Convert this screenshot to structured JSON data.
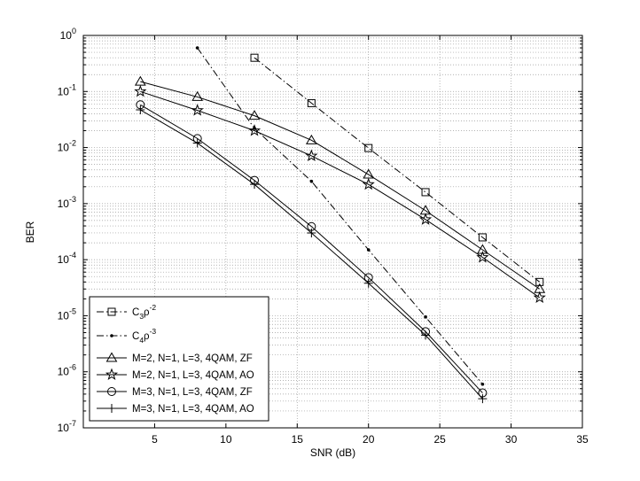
{
  "chart_data": {
    "type": "line",
    "title": "",
    "xlabel": "SNR (dB)",
    "ylabel": "BER",
    "xlim": [
      0,
      35
    ],
    "ylim": [
      1e-07,
      1
    ],
    "yscale": "log",
    "grid": true,
    "legend_position": "bottom-left",
    "x_ticks": [
      5,
      10,
      15,
      20,
      25,
      30,
      35
    ],
    "y_ticks": [
      {
        "value": 1,
        "base": "10",
        "exp": "0"
      },
      {
        "value": 0.1,
        "base": "10",
        "exp": "-1"
      },
      {
        "value": 0.01,
        "base": "10",
        "exp": "-2"
      },
      {
        "value": 0.001,
        "base": "10",
        "exp": "-3"
      },
      {
        "value": 0.0001,
        "base": "10",
        "exp": "-4"
      },
      {
        "value": 1e-05,
        "base": "10",
        "exp": "-5"
      },
      {
        "value": 1e-06,
        "base": "10",
        "exp": "-6"
      },
      {
        "value": 1e-07,
        "base": "10",
        "exp": "-7"
      }
    ],
    "series": [
      {
        "name": "C3ρ-2",
        "legend_main": "C",
        "legend_sub": "3",
        "legend_rho": "ρ",
        "legend_sup": "-2",
        "line_style": "dashdot",
        "marker": "square",
        "x": [
          12,
          16,
          20,
          24,
          28,
          32
        ],
        "y": [
          0.4,
          0.062,
          0.0098,
          0.0016,
          0.00025,
          4e-05
        ]
      },
      {
        "name": "C4ρ-3",
        "legend_main": "C",
        "legend_sub": "4",
        "legend_rho": "ρ",
        "legend_sup": "-3",
        "line_style": "dashdot",
        "marker": "dot",
        "x": [
          8,
          12,
          16,
          20,
          24,
          28
        ],
        "y": [
          0.6,
          0.022,
          0.0025,
          0.00015,
          9.5e-06,
          6e-07
        ]
      },
      {
        "name": "M=2, N=1, L=3, 4QAM, ZF",
        "line_style": "solid",
        "marker": "triangle",
        "x": [
          4,
          8,
          12,
          16,
          20,
          24,
          28,
          32
        ],
        "y": [
          0.15,
          0.08,
          0.037,
          0.0135,
          0.0033,
          0.00075,
          0.00015,
          3e-05
        ]
      },
      {
        "name": "M=2, N=1, L=3, 4QAM, AO",
        "line_style": "solid",
        "marker": "star",
        "x": [
          4,
          8,
          12,
          16,
          20,
          24,
          28,
          32
        ],
        "y": [
          0.1,
          0.046,
          0.02,
          0.0071,
          0.0022,
          0.00052,
          0.00011,
          2.1e-05
        ]
      },
      {
        "name": "M=3, N=1, L=3, 4QAM, ZF",
        "line_style": "solid",
        "marker": "circle",
        "x": [
          4,
          8,
          12,
          16,
          20,
          24,
          28
        ],
        "y": [
          0.058,
          0.0145,
          0.0026,
          0.00039,
          4.8e-05,
          5.2e-06,
          4.2e-07
        ]
      },
      {
        "name": "M=3, N=1, L=3, 4QAM, AO",
        "line_style": "solid",
        "marker": "plus",
        "x": [
          4,
          8,
          12,
          16,
          20,
          24,
          28
        ],
        "y": [
          0.047,
          0.012,
          0.0022,
          0.0003,
          3.8e-05,
          4.5e-06,
          3.3e-07
        ]
      }
    ]
  }
}
